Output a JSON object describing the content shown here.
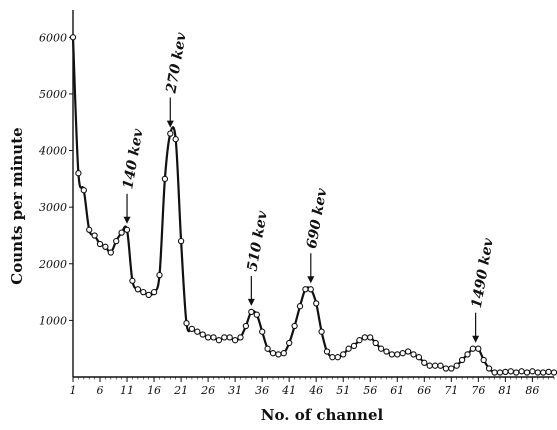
{
  "chart_data": {
    "type": "line",
    "xlabel": "No. of channel",
    "ylabel": "Counts per minute",
    "xlim": [
      1,
      90
    ],
    "ylim": [
      0,
      6200
    ],
    "x_ticks": [
      1,
      6,
      11,
      16,
      21,
      26,
      31,
      36,
      41,
      46,
      51,
      56,
      61,
      66,
      71,
      76,
      81,
      86
    ],
    "y_ticks": [
      1000,
      2000,
      3000,
      4000,
      5000,
      6000
    ],
    "grid": false,
    "series": [
      {
        "x": [
          1,
          2,
          3,
          4,
          5,
          6,
          7,
          8,
          9,
          10,
          11,
          12,
          13,
          14,
          15,
          16,
          17,
          18,
          19,
          20,
          21,
          22,
          23,
          24,
          25,
          26,
          27,
          28,
          29,
          30,
          31,
          32,
          33,
          34,
          35,
          36,
          37,
          38,
          39,
          40,
          41,
          42,
          43,
          44,
          45,
          46,
          47,
          48,
          49,
          50,
          51,
          52,
          53,
          54,
          55,
          56,
          57,
          58,
          59,
          60,
          61,
          62,
          63,
          64,
          65,
          66,
          67,
          68,
          69,
          70,
          71,
          72,
          73,
          74,
          75,
          76,
          77,
          78,
          79,
          80,
          81,
          82,
          83,
          84,
          85,
          86,
          87,
          88,
          89,
          90
        ],
        "y": [
          6000,
          3600,
          3300,
          2600,
          2500,
          2350,
          2300,
          2200,
          2400,
          2550,
          2600,
          1700,
          1550,
          1500,
          1450,
          1500,
          1800,
          3500,
          4300,
          4200,
          2400,
          950,
          850,
          800,
          750,
          700,
          700,
          650,
          700,
          700,
          650,
          700,
          900,
          1150,
          1100,
          800,
          500,
          420,
          400,
          420,
          600,
          900,
          1250,
          1550,
          1550,
          1300,
          800,
          450,
          350,
          350,
          400,
          500,
          550,
          650,
          700,
          700,
          600,
          500,
          450,
          400,
          400,
          420,
          450,
          400,
          350,
          250,
          200,
          200,
          200,
          150,
          150,
          200,
          300,
          400,
          500,
          500,
          300,
          150,
          80,
          80,
          90,
          100,
          80,
          100,
          80,
          100,
          80,
          80,
          90,
          80
        ]
      }
    ],
    "annotations": [
      {
        "label": "140 kev",
        "x": 11,
        "y": 2600
      },
      {
        "label": "270 kev",
        "x": 19,
        "y": 4300
      },
      {
        "label": "510 kev",
        "x": 34,
        "y": 1150
      },
      {
        "label": "690 kev",
        "x": 45,
        "y": 1550
      },
      {
        "label": "1490 kev",
        "x": 75.5,
        "y": 500
      }
    ]
  }
}
